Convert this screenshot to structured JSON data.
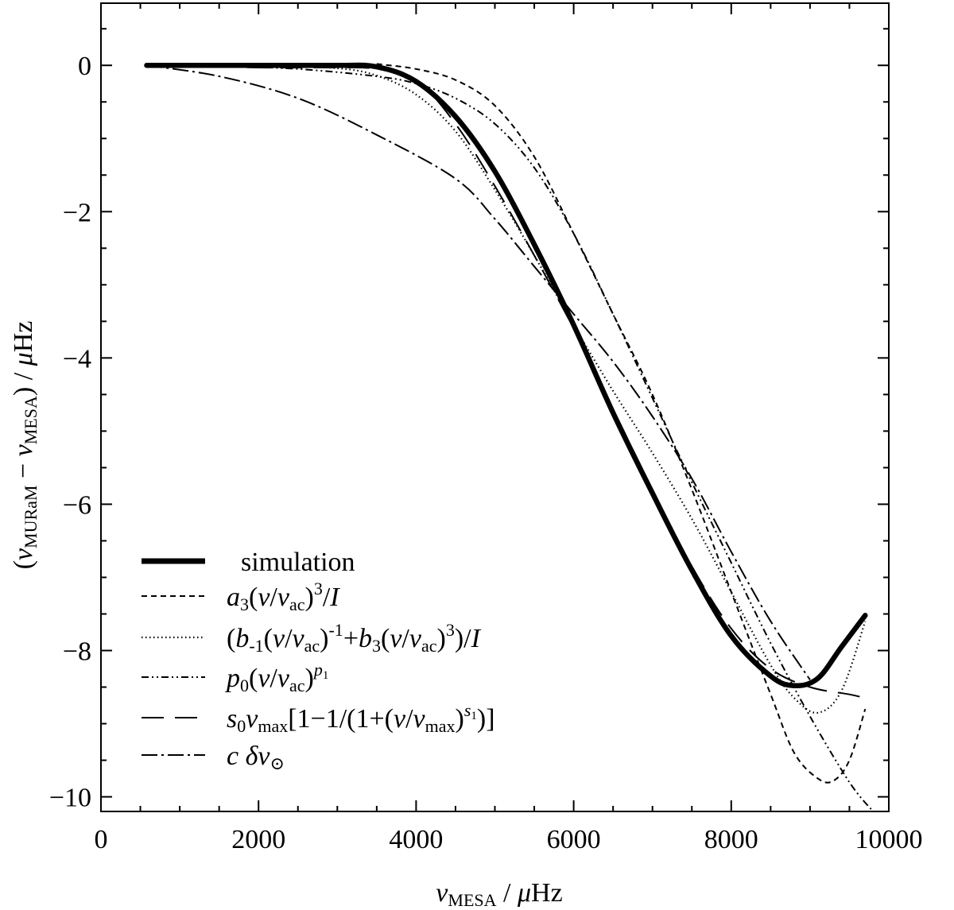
{
  "chart_data": {
    "type": "line",
    "title": "",
    "xlabel": "ν_MESA / μHz",
    "ylabel": "(ν_MURaM − ν_MESA) / μHz",
    "xlim": [
      0,
      10000
    ],
    "ylim": [
      -10.2,
      0.85
    ],
    "x_ticks": [
      0,
      2000,
      4000,
      6000,
      8000,
      10000
    ],
    "x_tick_labels": [
      "0",
      "2000",
      "4000",
      "6000",
      "8000",
      "10000"
    ],
    "y_ticks": [
      0,
      -2,
      -4,
      -6,
      -8,
      -10
    ],
    "y_tick_labels": [
      "0",
      "−2",
      "−4",
      "−6",
      "−8",
      "−10"
    ],
    "grid": false,
    "legend_position": "bottom-left",
    "series": [
      {
        "name": "simulation",
        "style": "thick-solid",
        "x": [
          580,
          2000,
          3000,
          3500,
          4000,
          4500,
          5000,
          5500,
          6000,
          6500,
          7000,
          7500,
          8000,
          8500,
          8800,
          9100,
          9400,
          9700
        ],
        "y": [
          0.0,
          0.0,
          0.0,
          -0.02,
          -0.22,
          -0.7,
          -1.45,
          -2.45,
          -3.55,
          -4.75,
          -5.85,
          -6.9,
          -7.8,
          -8.35,
          -8.48,
          -8.38,
          -7.95,
          -7.52
        ]
      },
      {
        "name": "a3(ν/νac)^3/I",
        "style": "short-dash",
        "x": [
          3500,
          4000,
          4500,
          5000,
          5500,
          6000,
          6500,
          7000,
          7500,
          8000,
          8500,
          8800,
          9100,
          9300,
          9500,
          9700
        ],
        "y": [
          0.02,
          -0.05,
          -0.2,
          -0.55,
          -1.25,
          -2.3,
          -3.4,
          -4.5,
          -5.8,
          -7.2,
          -8.6,
          -9.4,
          -9.75,
          -9.78,
          -9.5,
          -8.8
        ]
      },
      {
        "name": "(b-1(ν/νac)^-1+b3(ν/νac)^3)/I",
        "style": "dotted",
        "x": [
          580,
          2000,
          3000,
          3500,
          4000,
          4500,
          5000,
          5500,
          6000,
          6500,
          7000,
          7500,
          8000,
          8500,
          8800,
          9100,
          9400,
          9700
        ],
        "y": [
          0.0,
          0.0,
          -0.04,
          -0.14,
          -0.4,
          -0.9,
          -1.7,
          -2.6,
          -3.55,
          -4.45,
          -5.3,
          -6.2,
          -7.2,
          -8.2,
          -8.65,
          -8.85,
          -8.55,
          -7.6
        ]
      },
      {
        "name": "p0(ν/νac)^p1",
        "style": "dash-dot-dot",
        "x": [
          580,
          1500,
          2500,
          3500,
          4000,
          4500,
          5000,
          5500,
          6000,
          6500,
          7000,
          7500,
          8000,
          8500,
          9000,
          9500,
          9800
        ],
        "y": [
          0.0,
          -0.01,
          -0.05,
          -0.15,
          -0.25,
          -0.45,
          -0.8,
          -1.4,
          -2.3,
          -3.4,
          -4.55,
          -5.7,
          -6.8,
          -7.9,
          -8.9,
          -9.8,
          -10.2
        ]
      },
      {
        "name": "s0νmax[1−1/(1+(ν/νmax)^s1)]",
        "style": "long-dash",
        "x": [
          580,
          2000,
          3000,
          3500,
          4000,
          4500,
          5000,
          5500,
          6000,
          6500,
          7000,
          7500,
          8000,
          8500,
          9000,
          9500,
          9700
        ],
        "y": [
          0.0,
          -0.03,
          -0.03,
          -0.05,
          -0.2,
          -0.8,
          -1.65,
          -2.6,
          -3.6,
          -4.7,
          -5.8,
          -6.85,
          -7.7,
          -8.25,
          -8.5,
          -8.6,
          -8.65
        ]
      },
      {
        "name": "c δν⊙",
        "style": "dash-dot",
        "x": [
          580,
          1500,
          2500,
          3500,
          4500,
          5000,
          5500,
          6000,
          6500,
          7000,
          7500,
          8000,
          8500,
          9000
        ],
        "y": [
          0.0,
          -0.15,
          -0.45,
          -0.95,
          -1.55,
          -2.1,
          -2.75,
          -3.4,
          -4.05,
          -4.8,
          -5.65,
          -6.65,
          -7.6,
          -8.4
        ]
      }
    ]
  }
}
